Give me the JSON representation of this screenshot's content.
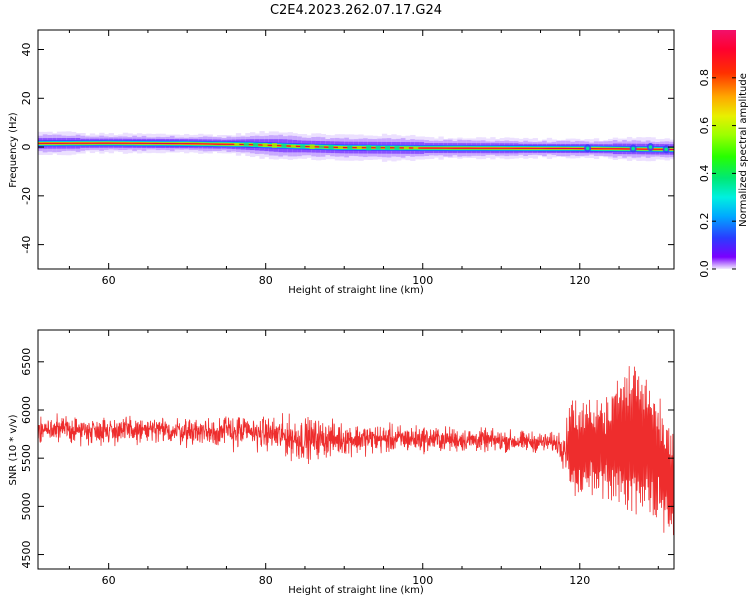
{
  "figure": {
    "title": "C2E4.2023.262.07.17.G24"
  },
  "chart_data": [
    {
      "type": "heatmap",
      "title": "C2E4.2023.262.07.17.G24",
      "xlabel": "Height of straight line (km)",
      "ylabel": "Frequency (Hz)",
      "xlim": [
        51,
        132
      ],
      "ylim": [
        -50,
        48
      ],
      "xticks": [
        60,
        80,
        100,
        120
      ],
      "yticks": [
        40,
        20,
        0,
        -20,
        -40
      ],
      "colorbar": {
        "label": "Normalized spectral amplitude",
        "range": [
          0.0,
          1.0
        ],
        "ticks": [
          0.0,
          0.2,
          0.4,
          0.6,
          0.8
        ],
        "tick_labels": [
          "0.0",
          "0.2",
          "0.4",
          "0.6",
          "0.8"
        ],
        "colormap": "gist_ncar-like"
      },
      "center_frequency_track": [
        {
          "x": 51,
          "y": 1.5
        },
        {
          "x": 60,
          "y": 1.6
        },
        {
          "x": 70,
          "y": 1.4
        },
        {
          "x": 78,
          "y": 1.0
        },
        {
          "x": 84,
          "y": 0.3
        },
        {
          "x": 90,
          "y": -0.2
        },
        {
          "x": 100,
          "y": -0.4
        },
        {
          "x": 110,
          "y": -0.5
        },
        {
          "x": 120,
          "y": -0.6
        },
        {
          "x": 127,
          "y": -0.8
        },
        {
          "x": 132,
          "y": -1.0
        }
      ],
      "peak_amplitude_color": "#e8003a"
    },
    {
      "type": "line",
      "xlabel": "Height of straight line (km)",
      "ylabel": "SNR (10 * v/v)",
      "xlim": [
        51,
        132
      ],
      "ylim": [
        4350,
        6830
      ],
      "xticks": [
        60,
        80,
        100,
        120
      ],
      "yticks": [
        6500,
        6000,
        5500,
        5000,
        4500
      ],
      "color": "#ee2d2d",
      "envelope": [
        {
          "x": 51,
          "mean": 5800,
          "spread": 180
        },
        {
          "x": 60,
          "mean": 5790,
          "spread": 200
        },
        {
          "x": 70,
          "mean": 5780,
          "spread": 200
        },
        {
          "x": 75,
          "mean": 5780,
          "spread": 260
        },
        {
          "x": 80,
          "mean": 5760,
          "spread": 230
        },
        {
          "x": 84,
          "mean": 5700,
          "spread": 330
        },
        {
          "x": 90,
          "mean": 5700,
          "spread": 230
        },
        {
          "x": 100,
          "mean": 5700,
          "spread": 190
        },
        {
          "x": 110,
          "mean": 5680,
          "spread": 160
        },
        {
          "x": 117,
          "mean": 5660,
          "spread": 140
        },
        {
          "x": 119,
          "mean": 5600,
          "spread": 520
        },
        {
          "x": 123,
          "mean": 5600,
          "spread": 600
        },
        {
          "x": 127,
          "mean": 5700,
          "spread": 850
        },
        {
          "x": 130,
          "mean": 5500,
          "spread": 700
        },
        {
          "x": 132,
          "mean": 5200,
          "spread": 650
        }
      ]
    }
  ]
}
